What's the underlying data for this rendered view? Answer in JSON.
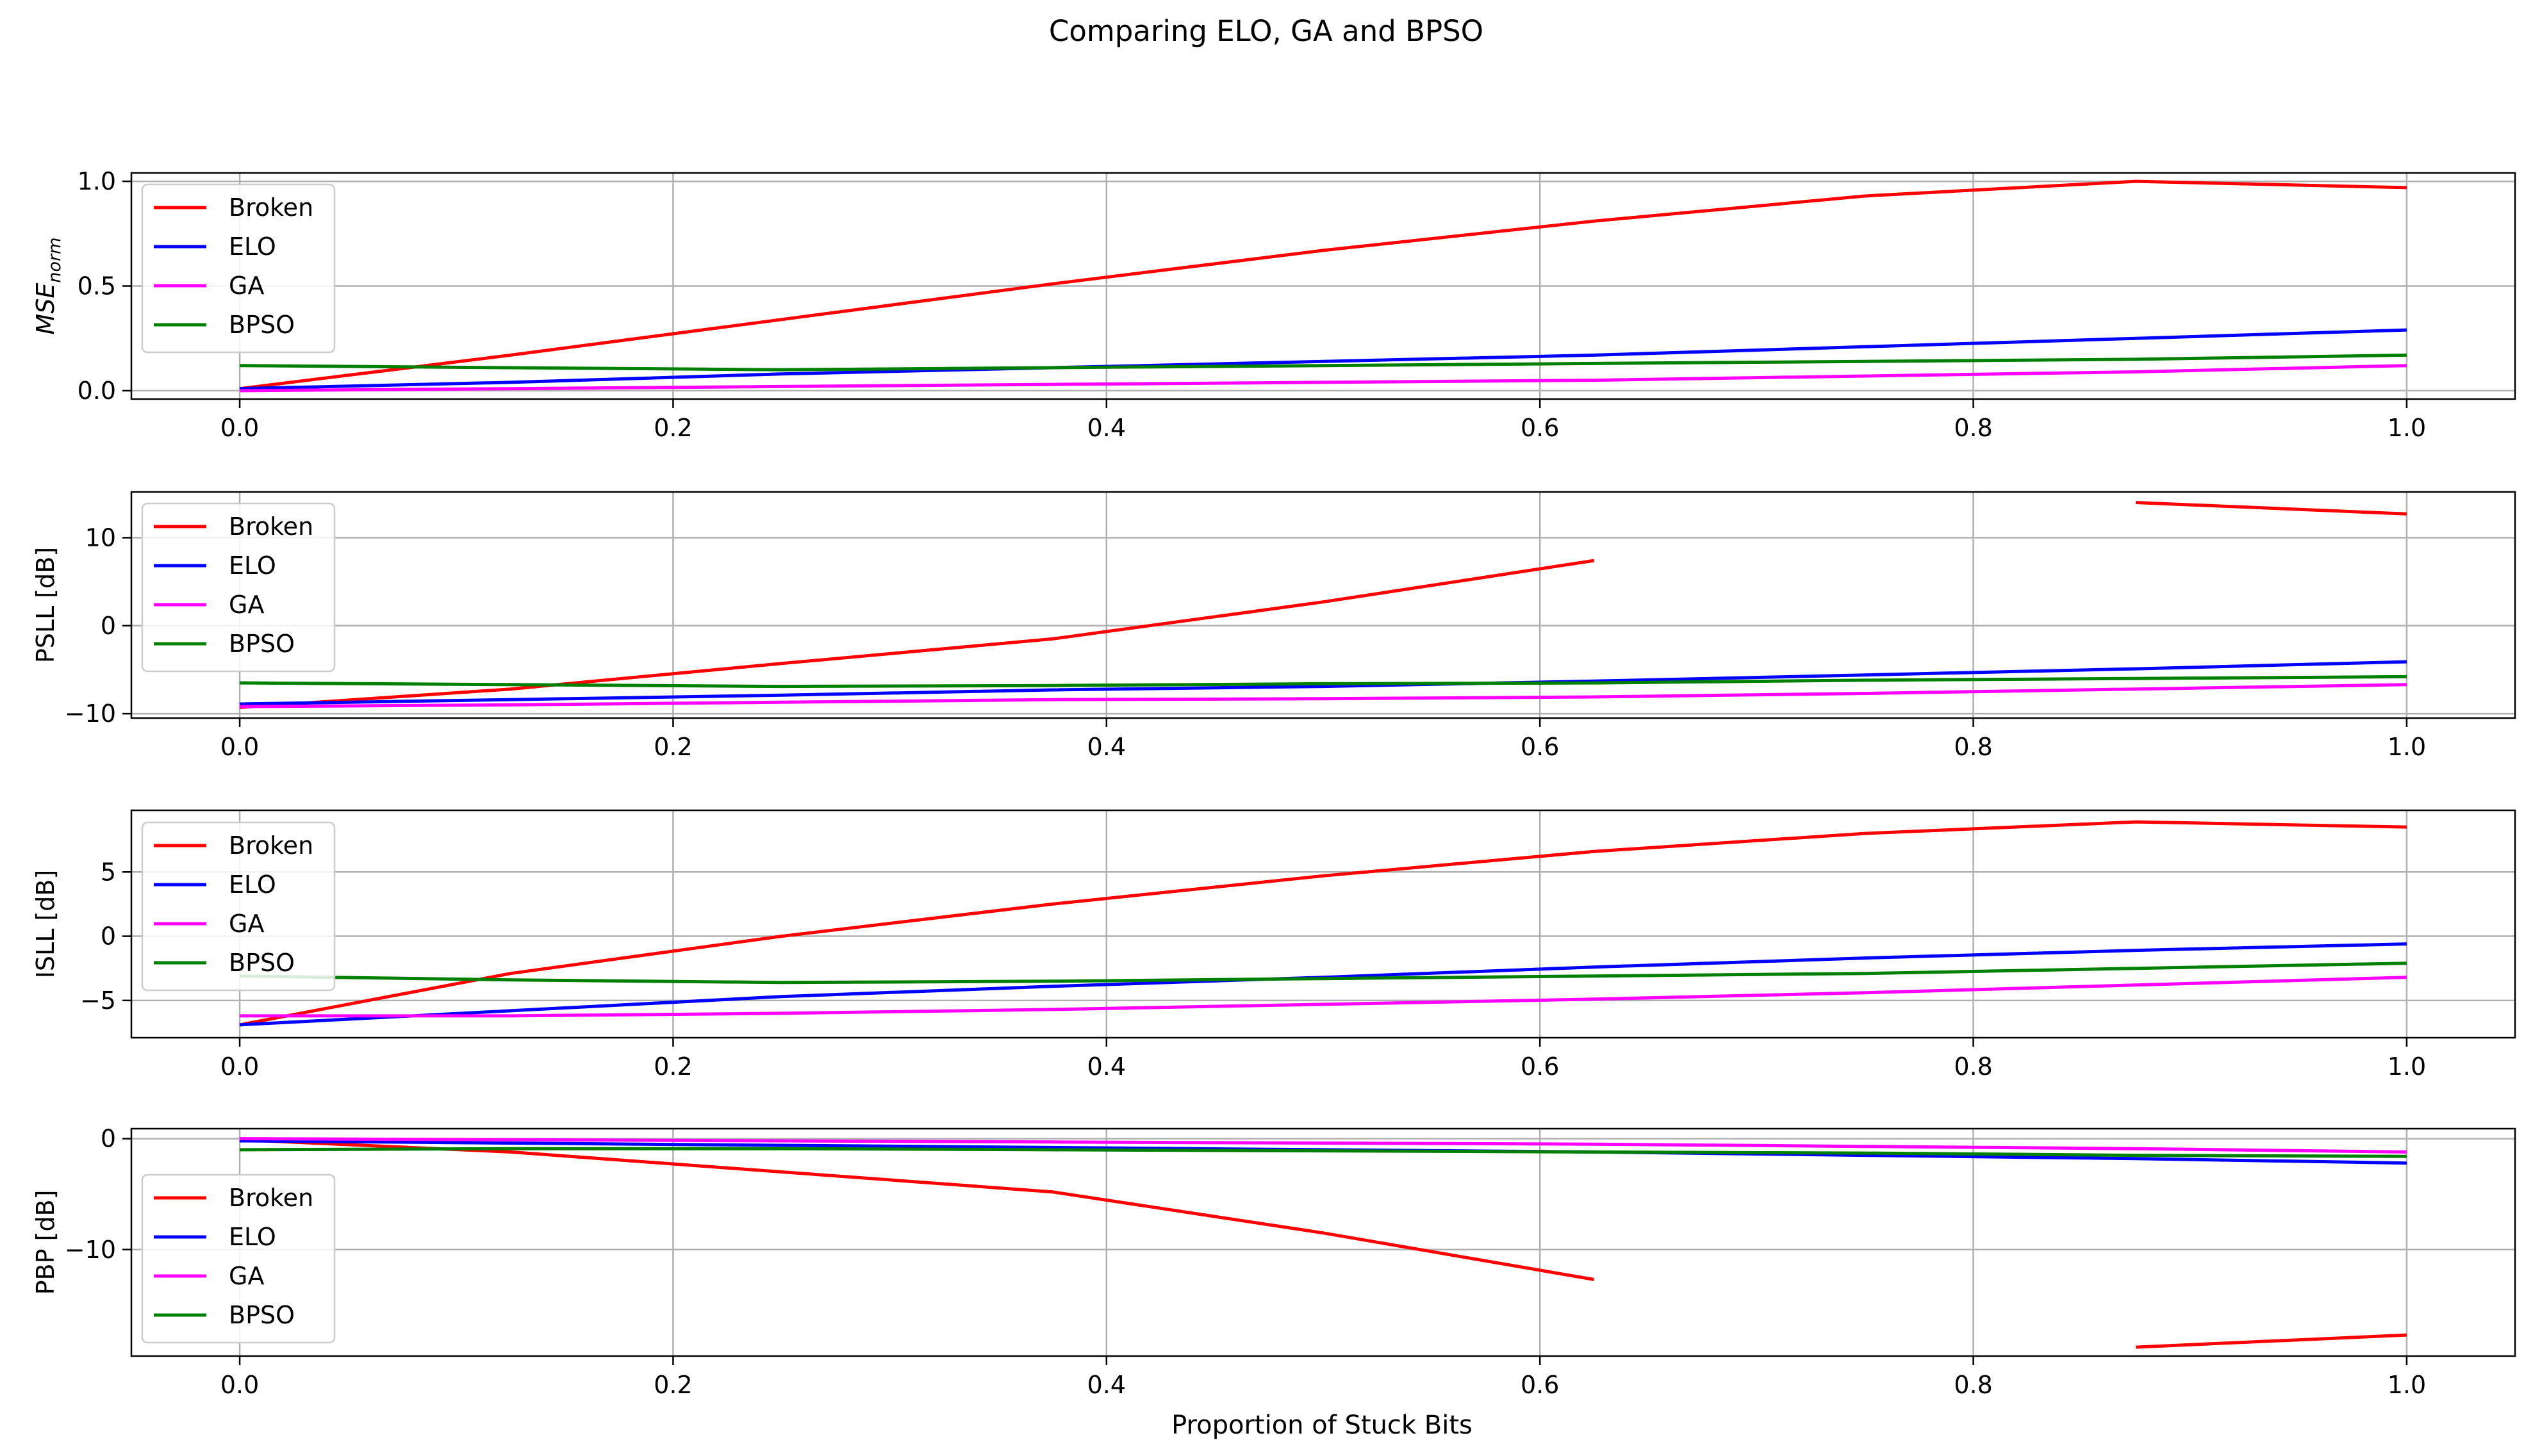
{
  "title": "Comparing ELO, GA and BPSO",
  "x_axis_label": "Proportion of Stuck Bits",
  "series_colors": {
    "Broken": "#ff0000",
    "ELO": "#0000ff",
    "GA": "#ff00ff",
    "BPSO": "#008000"
  },
  "legend_labels": [
    "Broken",
    "ELO",
    "GA",
    "BPSO"
  ],
  "chart_data": [
    {
      "type": "line",
      "ylabel": "MSE_norm",
      "ylabel_main": "MSE",
      "ylabel_sub": "norm",
      "xlim": [
        -0.05,
        1.05
      ],
      "ylim": [
        -0.04,
        1.04
      ],
      "xticks": [
        0.0,
        0.2,
        0.4,
        0.6,
        0.8,
        1.0
      ],
      "xtick_labels": [
        "0.0",
        "0.2",
        "0.4",
        "0.6",
        "0.8",
        "1.0"
      ],
      "yticks": [
        0.0,
        0.5,
        1.0
      ],
      "ytick_labels": [
        "0.0",
        "0.5",
        "1.0"
      ],
      "grid": true,
      "legend_position": "upper-left",
      "x": [
        0.0,
        0.125,
        0.25,
        0.375,
        0.5,
        0.625,
        0.75,
        0.875,
        1.0
      ],
      "series": [
        {
          "name": "Broken",
          "values": [
            0.01,
            0.17,
            0.34,
            0.51,
            0.67,
            0.81,
            0.93,
            1.0,
            0.97
          ]
        },
        {
          "name": "ELO",
          "values": [
            0.01,
            0.04,
            0.08,
            0.11,
            0.14,
            0.17,
            0.21,
            0.25,
            0.29
          ]
        },
        {
          "name": "GA",
          "values": [
            0.0,
            0.01,
            0.02,
            0.03,
            0.04,
            0.05,
            0.07,
            0.09,
            0.12
          ]
        },
        {
          "name": "BPSO",
          "values": [
            0.12,
            0.11,
            0.1,
            0.11,
            0.12,
            0.13,
            0.14,
            0.15,
            0.17
          ]
        }
      ]
    },
    {
      "type": "line",
      "ylabel": "PSLL [dB]",
      "xlim": [
        -0.05,
        1.05
      ],
      "ylim": [
        -10.5,
        15.2
      ],
      "xticks": [
        0.0,
        0.2,
        0.4,
        0.6,
        0.8,
        1.0
      ],
      "xtick_labels": [
        "0.0",
        "0.2",
        "0.4",
        "0.6",
        "0.8",
        "1.0"
      ],
      "yticks": [
        -10,
        0,
        10
      ],
      "ytick_labels": [
        "−10",
        "0",
        "10"
      ],
      "grid": true,
      "legend_position": "upper-left",
      "x": [
        0.0,
        0.125,
        0.25,
        0.375,
        0.5,
        0.625,
        0.75,
        0.875,
        1.0
      ],
      "series": [
        {
          "name": "Broken",
          "values": [
            -9.3,
            -7.2,
            -4.3,
            -1.5,
            2.7,
            7.4,
            null,
            14.0,
            12.7
          ]
        },
        {
          "name": "ELO",
          "values": [
            -8.9,
            -8.4,
            -7.9,
            -7.3,
            -6.9,
            -6.3,
            -5.6,
            -4.9,
            -4.1
          ]
        },
        {
          "name": "GA",
          "values": [
            -9.2,
            -9.0,
            -8.7,
            -8.4,
            -8.3,
            -8.1,
            -7.7,
            -7.2,
            -6.7
          ]
        },
        {
          "name": "BPSO",
          "values": [
            -6.5,
            -6.7,
            -6.9,
            -6.8,
            -6.6,
            -6.5,
            -6.2,
            -6.0,
            -5.8
          ]
        }
      ]
    },
    {
      "type": "line",
      "ylabel": "ISLL [dB]",
      "xlim": [
        -0.05,
        1.05
      ],
      "ylim": [
        -7.9,
        9.8
      ],
      "xticks": [
        0.0,
        0.2,
        0.4,
        0.6,
        0.8,
        1.0
      ],
      "xtick_labels": [
        "0.0",
        "0.2",
        "0.4",
        "0.6",
        "0.8",
        "1.0"
      ],
      "yticks": [
        -5,
        0,
        5
      ],
      "ytick_labels": [
        "−5",
        "0",
        "5"
      ],
      "grid": true,
      "legend_position": "upper-left",
      "x": [
        0.0,
        0.125,
        0.25,
        0.375,
        0.5,
        0.625,
        0.75,
        0.875,
        1.0
      ],
      "series": [
        {
          "name": "Broken",
          "values": [
            -6.9,
            -2.9,
            0.0,
            2.5,
            4.7,
            6.6,
            8.0,
            8.9,
            8.5
          ]
        },
        {
          "name": "ELO",
          "values": [
            -6.9,
            -5.8,
            -4.7,
            -3.9,
            -3.2,
            -2.4,
            -1.7,
            -1.1,
            -0.6
          ]
        },
        {
          "name": "GA",
          "values": [
            -6.2,
            -6.2,
            -6.0,
            -5.7,
            -5.3,
            -4.9,
            -4.4,
            -3.8,
            -3.2
          ]
        },
        {
          "name": "BPSO",
          "values": [
            -3.1,
            -3.4,
            -3.6,
            -3.5,
            -3.3,
            -3.1,
            -2.9,
            -2.5,
            -2.1
          ]
        }
      ]
    },
    {
      "type": "line",
      "ylabel": "PBP [dB]",
      "xlim": [
        -0.05,
        1.05
      ],
      "ylim": [
        -19.6,
        0.9
      ],
      "xticks": [
        0.0,
        0.2,
        0.4,
        0.6,
        0.8,
        1.0
      ],
      "xtick_labels": [
        "0.0",
        "0.2",
        "0.4",
        "0.6",
        "0.8",
        "1.0"
      ],
      "yticks": [
        -10,
        0
      ],
      "ytick_labels": [
        "−10",
        "0"
      ],
      "grid": true,
      "legend_position": "center-left",
      "x": [
        0.0,
        0.125,
        0.25,
        0.375,
        0.5,
        0.625,
        0.75,
        0.875,
        1.0
      ],
      "series": [
        {
          "name": "Broken",
          "values": [
            -0.1,
            -1.2,
            -3.0,
            -4.8,
            -8.5,
            -12.7,
            null,
            -18.8,
            -17.7
          ]
        },
        {
          "name": "ELO",
          "values": [
            -0.2,
            -0.4,
            -0.6,
            -0.8,
            -1.0,
            -1.2,
            -1.5,
            -1.8,
            -2.2
          ]
        },
        {
          "name": "GA",
          "values": [
            0.0,
            -0.1,
            -0.2,
            -0.3,
            -0.4,
            -0.5,
            -0.7,
            -0.9,
            -1.2
          ]
        },
        {
          "name": "BPSO",
          "values": [
            -1.0,
            -0.9,
            -0.9,
            -1.0,
            -1.1,
            -1.2,
            -1.3,
            -1.5,
            -1.6
          ]
        }
      ]
    }
  ]
}
